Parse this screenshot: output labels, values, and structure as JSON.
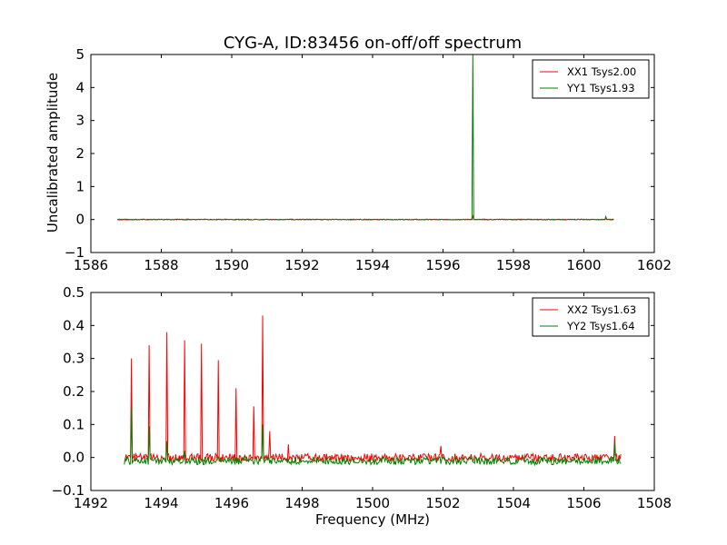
{
  "chart_data": [
    {
      "type": "line",
      "title": "CYG-A, ID:83456 on-off/off spectrum",
      "xlabel": "",
      "ylabel": "Uncalibrated amplitude",
      "xlim": [
        1586,
        1602
      ],
      "ylim": [
        -1,
        5
      ],
      "xticks": [
        1586,
        1588,
        1590,
        1592,
        1594,
        1596,
        1598,
        1600,
        1602
      ],
      "yticks": [
        -1,
        0,
        1,
        2,
        3,
        4,
        5
      ],
      "xtick_labels": [
        "1586",
        "1588",
        "1590",
        "1592",
        "1594",
        "1596",
        "1598",
        "1600",
        "1602"
      ],
      "ytick_labels": [
        "−1",
        "0",
        "1",
        "2",
        "3",
        "4",
        "5"
      ],
      "x_range": [
        1586.75,
        1600.85
      ],
      "legend_position": "top-right",
      "grid": false,
      "series": [
        {
          "name": "XX1 Tsys2.00",
          "color": "#ff0000",
          "baseline": 0.0,
          "noise": 0.012,
          "peaks": [
            {
              "x": 1596.85,
              "y": 0.1
            },
            {
              "x": 1600.62,
              "y": 0.03
            }
          ]
        },
        {
          "name": "YY1 Tsys1.93",
          "color": "#008000",
          "baseline": 0.0,
          "noise": 0.012,
          "peaks": [
            {
              "x": 1596.85,
              "y": 5.0
            },
            {
              "x": 1600.62,
              "y": 0.09
            }
          ]
        }
      ]
    },
    {
      "type": "line",
      "title": "",
      "xlabel": "Frequency (MHz)",
      "ylabel": "",
      "xlim": [
        1492,
        1508
      ],
      "ylim": [
        -0.1,
        0.5
      ],
      "xticks": [
        1492,
        1494,
        1496,
        1498,
        1500,
        1502,
        1504,
        1506,
        1508
      ],
      "yticks": [
        -0.1,
        0.0,
        0.1,
        0.2,
        0.3,
        0.4,
        0.5
      ],
      "xtick_labels": [
        "1492",
        "1494",
        "1496",
        "1498",
        "1500",
        "1502",
        "1504",
        "1506",
        "1508"
      ],
      "ytick_labels": [
        "−0.1",
        "0.0",
        "0.1",
        "0.2",
        "0.3",
        "0.4",
        "0.5"
      ],
      "x_range": [
        1492.95,
        1507.05
      ],
      "legend_position": "top-right",
      "grid": false,
      "series": [
        {
          "name": "XX2 Tsys1.63",
          "color": "#ff0000",
          "baseline": 0.0,
          "noise": 0.012,
          "peaks": [
            {
              "x": 1493.15,
              "y": 0.3
            },
            {
              "x": 1493.65,
              "y": 0.34
            },
            {
              "x": 1494.15,
              "y": 0.38
            },
            {
              "x": 1494.65,
              "y": 0.355
            },
            {
              "x": 1495.15,
              "y": 0.345
            },
            {
              "x": 1495.62,
              "y": 0.295
            },
            {
              "x": 1496.12,
              "y": 0.21
            },
            {
              "x": 1496.62,
              "y": 0.155
            },
            {
              "x": 1496.88,
              "y": 0.43
            },
            {
              "x": 1497.08,
              "y": 0.08
            },
            {
              "x": 1497.6,
              "y": 0.04
            },
            {
              "x": 1501.95,
              "y": 0.035
            },
            {
              "x": 1506.88,
              "y": 0.065
            }
          ]
        },
        {
          "name": "YY2 Tsys1.64",
          "color": "#008000",
          "baseline": -0.01,
          "noise": 0.012,
          "peaks": [
            {
              "x": 1493.15,
              "y": 0.15
            },
            {
              "x": 1493.65,
              "y": 0.095
            },
            {
              "x": 1494.15,
              "y": 0.05
            },
            {
              "x": 1494.65,
              "y": 0.02
            },
            {
              "x": 1496.88,
              "y": 0.1
            },
            {
              "x": 1506.88,
              "y": 0.045
            }
          ]
        }
      ]
    }
  ]
}
